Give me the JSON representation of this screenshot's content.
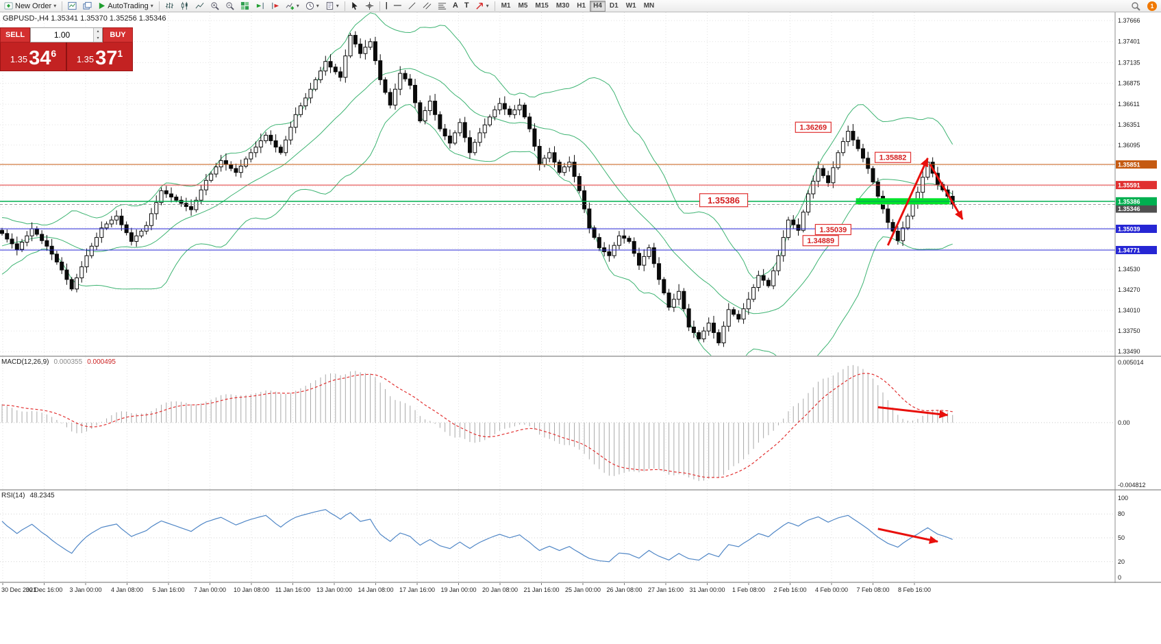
{
  "toolbar": {
    "new_order_label": "New Order",
    "autotrading_label": "AutoTrading",
    "text_tool_label": "A",
    "text_label_tool_label": "T",
    "timeframes": [
      "M1",
      "M5",
      "M15",
      "M30",
      "H1",
      "H4",
      "D1",
      "W1",
      "MN"
    ],
    "active_timeframe": "H4",
    "notification_badge": "1"
  },
  "symbol_header": {
    "text": "GBPUSD-,H4  1.35341 1.35370 1.35256 1.35346"
  },
  "trade_panel": {
    "sell_label": "SELL",
    "buy_label": "BUY",
    "volume": "1.00",
    "sell_price": {
      "prefix": "1.35",
      "pips": "34",
      "point": "6"
    },
    "buy_price": {
      "prefix": "1.35",
      "pips": "37",
      "point": "1"
    }
  },
  "chart_data": {
    "type": "candlestick",
    "symbol": "GBPUSD-",
    "timeframe": "H4",
    "price_axis": {
      "max": 1.3777,
      "min": 1.3344,
      "labels": [
        "1.37666",
        "1.37401",
        "1.37135",
        "1.36875",
        "1.36611",
        "1.36351",
        "1.36095",
        "1.35835",
        "1.35575",
        "1.35315",
        "1.35055",
        "1.34790",
        "1.34530",
        "1.34270",
        "1.34010",
        "1.33750",
        "1.33490"
      ]
    },
    "time_labels": [
      "30 Dec 2021",
      "30 Dec 16:00",
      "3 Jan 00:00",
      "4 Jan 08:00",
      "5 Jan 16:00",
      "7 Jan 00:00",
      "10 Jan 08:00",
      "11 Jan 16:00",
      "13 Jan 00:00",
      "14 Jan 08:00",
      "17 Jan 16:00",
      "19 Jan 00:00",
      "20 Jan 08:00",
      "21 Jan 16:00",
      "25 Jan 00:00",
      "26 Jan 08:00",
      "27 Jan 16:00",
      "31 Jan 00:00",
      "1 Feb 08:00",
      "2 Feb 16:00",
      "4 Feb 00:00",
      "7 Feb 08:00",
      "8 Feb 16:00"
    ],
    "closes": [
      1.3498,
      1.3491,
      1.3485,
      1.3478,
      1.3487,
      1.3495,
      1.3504,
      1.3497,
      1.3489,
      1.3482,
      1.3472,
      1.3462,
      1.3452,
      1.344,
      1.3428,
      1.3442,
      1.3456,
      1.347,
      1.3482,
      1.3493,
      1.3505,
      1.351,
      1.3515,
      1.352,
      1.3509,
      1.3499,
      1.3488,
      1.3495,
      1.3501,
      1.3508,
      1.3523,
      1.3537,
      1.3552,
      1.3548,
      1.3544,
      1.354,
      1.3536,
      1.3532,
      1.3528,
      1.354,
      1.3553,
      1.3565,
      1.3573,
      1.3582,
      1.359,
      1.3585,
      1.358,
      1.3575,
      1.3583,
      1.3592,
      1.36,
      1.3607,
      1.3615,
      1.3622,
      1.3615,
      1.3607,
      1.36,
      1.3616,
      1.3632,
      1.3648,
      1.3659,
      1.3669,
      1.368,
      1.3692,
      1.3703,
      1.3715,
      1.3708,
      1.3702,
      1.3695,
      1.3722,
      1.3748,
      1.3737,
      1.3725,
      1.3733,
      1.374,
      1.3716,
      1.3692,
      1.3676,
      1.366,
      1.368,
      1.37,
      1.3693,
      1.3685,
      1.3663,
      1.364,
      1.3653,
      1.3665,
      1.3648,
      1.363,
      1.3621,
      1.3612,
      1.3625,
      1.3638,
      1.3619,
      1.36,
      1.3613,
      1.3625,
      1.3635,
      1.3645,
      1.3654,
      1.3662,
      1.3655,
      1.3648,
      1.3654,
      1.366,
      1.3645,
      1.363,
      1.3608,
      1.3585,
      1.3593,
      1.36,
      1.3588,
      1.3575,
      1.3582,
      1.3588,
      1.357,
      1.3552,
      1.3529,
      1.3505,
      1.3493,
      1.348,
      1.3475,
      1.347,
      1.3483,
      1.3495,
      1.3492,
      1.3488,
      1.3473,
      1.3458,
      1.3469,
      1.348,
      1.346,
      1.344,
      1.3423,
      1.3405,
      1.3415,
      1.3425,
      1.3403,
      1.338,
      1.3373,
      1.3365,
      1.3375,
      1.3385,
      1.3373,
      1.336,
      1.3381,
      1.3402,
      1.3396,
      1.339,
      1.3403,
      1.3415,
      1.343,
      1.3445,
      1.3439,
      1.3432,
      1.3451,
      1.347,
      1.3493,
      1.3515,
      1.3509,
      1.3502,
      1.3525,
      1.3548,
      1.3564,
      1.358,
      1.3571,
      1.3562,
      1.3581,
      1.36,
      1.3614,
      1.3627,
      1.3616,
      1.3605,
      1.3593,
      1.358,
      1.3563,
      1.3545,
      1.3529,
      1.3512,
      1.3501,
      1.3489,
      1.3505,
      1.352,
      1.3535,
      1.355,
      1.3569,
      1.3588,
      1.3574,
      1.356,
      1.3553,
      1.3545,
      1.3535
    ],
    "indicator_warmup_closes": [
      1.3438,
      1.3445,
      1.3452,
      1.3448,
      1.3458,
      1.3465,
      1.346,
      1.347,
      1.3478,
      1.3472,
      1.3482,
      1.3488,
      1.3484,
      1.3492,
      1.3498,
      1.3494,
      1.35,
      1.3505,
      1.3498,
      1.3503,
      1.3502
    ],
    "bollinger": {
      "period": 20,
      "deviation": 2,
      "color": "#3cb371"
    },
    "hlines": [
      {
        "price": 1.35851,
        "color": "#c55a11",
        "tag": "1.35851"
      },
      {
        "price": 1.35591,
        "color": "#e03030",
        "tag": "1.35591"
      },
      {
        "price": 1.35386,
        "color": "#00b050",
        "tag": "1.35386"
      },
      {
        "price": 1.35039,
        "color": "#2626d4",
        "tag": "1.35039"
      },
      {
        "price": 1.34771,
        "color": "#2626d4",
        "tag": "1.34771"
      }
    ],
    "current_price": {
      "value": 1.35346,
      "tag": "1.35346",
      "color": "#505050"
    },
    "support_zone": {
      "price": 1.35386,
      "from_candle": 172,
      "to_candle": 190,
      "color": "#00e32a"
    },
    "annotations": [
      {
        "text": "1.36269",
        "candle": 163,
        "price": 1.3632
      },
      {
        "text": "1.35882",
        "candle": 179,
        "price": 1.3594
      },
      {
        "text": "1.35386",
        "candle": 145,
        "price": 1.354,
        "large": true
      },
      {
        "text": "1.35039",
        "candle": 167,
        "price": 1.3503
      },
      {
        "text": "1.34889",
        "candle": 164.5,
        "price": 1.3489
      }
    ],
    "arrows": [
      {
        "panel": "main",
        "from_candle": 178,
        "from_price": 1.3483,
        "to_candle": 186,
        "to_price": 1.3593
      },
      {
        "panel": "main",
        "from_candle": 186.5,
        "from_price": 1.3585,
        "to_candle": 193,
        "to_price": 1.3516
      },
      {
        "panel": "macd",
        "from_candle": 176,
        "from_fy": 0.38,
        "to_candle": 190,
        "to_fy": 0.44
      },
      {
        "panel": "rsi",
        "from_candle": 176,
        "from_fy": 0.42,
        "to_candle": 188,
        "to_fy": 0.56
      }
    ],
    "macd": {
      "name": "MACD(12,26,9)",
      "main_value": "0.000355",
      "signal_value": "0.000495",
      "fast": 12,
      "slow": 26,
      "signal": 9,
      "axis_labels": [
        "0.005014",
        "0.00",
        "-0.004812"
      ],
      "histogram_color": "#a8a8a8",
      "signal_color": "#e23030"
    },
    "rsi": {
      "name": "RSI(14)",
      "value": "48.2345",
      "period": 14,
      "axis_labels": [
        "100",
        "80",
        "50",
        "20",
        "0"
      ],
      "level_lines": [
        80,
        50,
        20
      ],
      "color": "#4f86c6"
    },
    "arrow_color": "#e8100c"
  }
}
